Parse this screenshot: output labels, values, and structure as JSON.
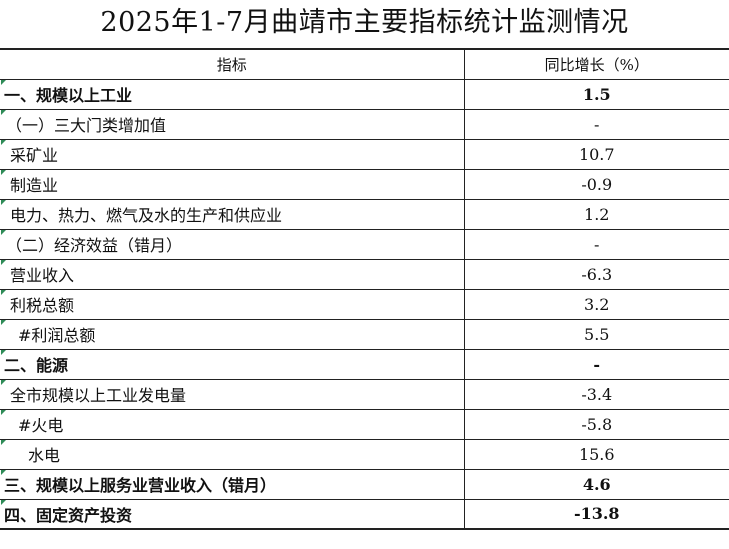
{
  "title": "2025年1-7月曲靖市主要指标统计监测情况",
  "columns": {
    "indicator": "指标",
    "growth": "同比增长（%）"
  },
  "rows": [
    {
      "label": "一、规模以上工业",
      "value": "1.5",
      "level": 0
    },
    {
      "label": "（一）三大门类增加值",
      "value": "-",
      "level": 1
    },
    {
      "label": "采矿业",
      "value": "10.7",
      "level": 2
    },
    {
      "label": "制造业",
      "value": "-0.9",
      "level": 2
    },
    {
      "label": "电力、热力、燃气及水的生产和供应业",
      "value": "1.2",
      "level": 2
    },
    {
      "label": "（二）经济效益（错月）",
      "value": "-",
      "level": 1
    },
    {
      "label": "营业收入",
      "value": "-6.3",
      "level": 2
    },
    {
      "label": "利税总额",
      "value": "3.2",
      "level": 2
    },
    {
      "label": "#利润总额",
      "value": "5.5",
      "level": 3
    },
    {
      "label": "二、能源",
      "value": "-",
      "level": 0
    },
    {
      "label": "全市规模以上工业发电量",
      "value": "-3.4",
      "level": 2
    },
    {
      "label": "#火电",
      "value": "-5.8",
      "level": 3
    },
    {
      "label": "水电",
      "value": "15.6",
      "level": 4
    },
    {
      "label": "三、规模以上服务业营业收入（错月）",
      "value": "4.6",
      "level": 0
    },
    {
      "label": "四、固定资产投资",
      "value": "-13.8",
      "level": 0
    }
  ],
  "colors": {
    "border": "#222222",
    "cell_marker": "#2e8b57"
  }
}
